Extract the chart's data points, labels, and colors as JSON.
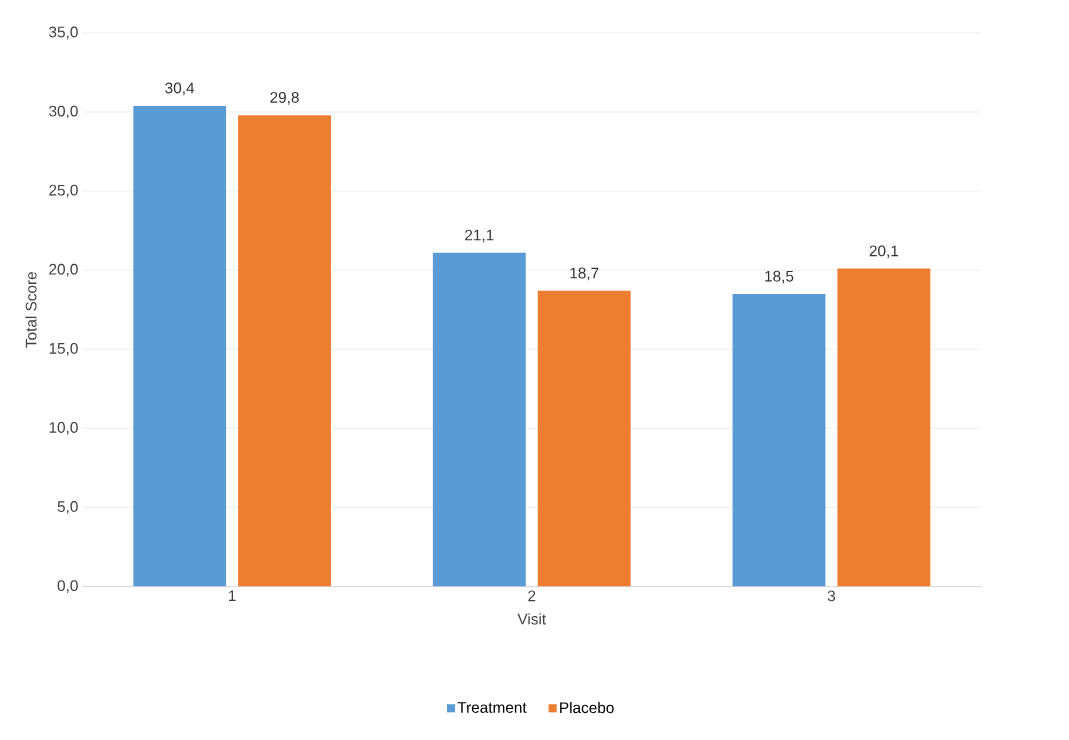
{
  "chart_data": {
    "type": "bar",
    "xlabel": "Visit",
    "ylabel": "Total Score",
    "categories": [
      "1",
      "2",
      "3"
    ],
    "series": [
      {
        "name": "Treatment",
        "color": "#5b9bd5",
        "values": [
          30.4,
          21.1,
          18.5
        ],
        "value_labels": [
          "30,4",
          "21,1",
          "18,5"
        ]
      },
      {
        "name": "Placebo",
        "color": "#ed7d31",
        "values": [
          29.8,
          18.7,
          20.1
        ],
        "value_labels": [
          "29,8",
          "18,7",
          "20,1"
        ]
      }
    ],
    "ylim": [
      0,
      35
    ],
    "yticks": [
      {
        "value": 0,
        "label": "0,0"
      },
      {
        "value": 5,
        "label": "5,0"
      },
      {
        "value": 10,
        "label": "10,0"
      },
      {
        "value": 15,
        "label": "15,0"
      },
      {
        "value": 20,
        "label": "20,0"
      },
      {
        "value": 25,
        "label": "25,0"
      },
      {
        "value": 30,
        "label": "30,0"
      },
      {
        "value": 35,
        "label": "35,0"
      }
    ],
    "grid": "y",
    "legend": "bottom"
  }
}
